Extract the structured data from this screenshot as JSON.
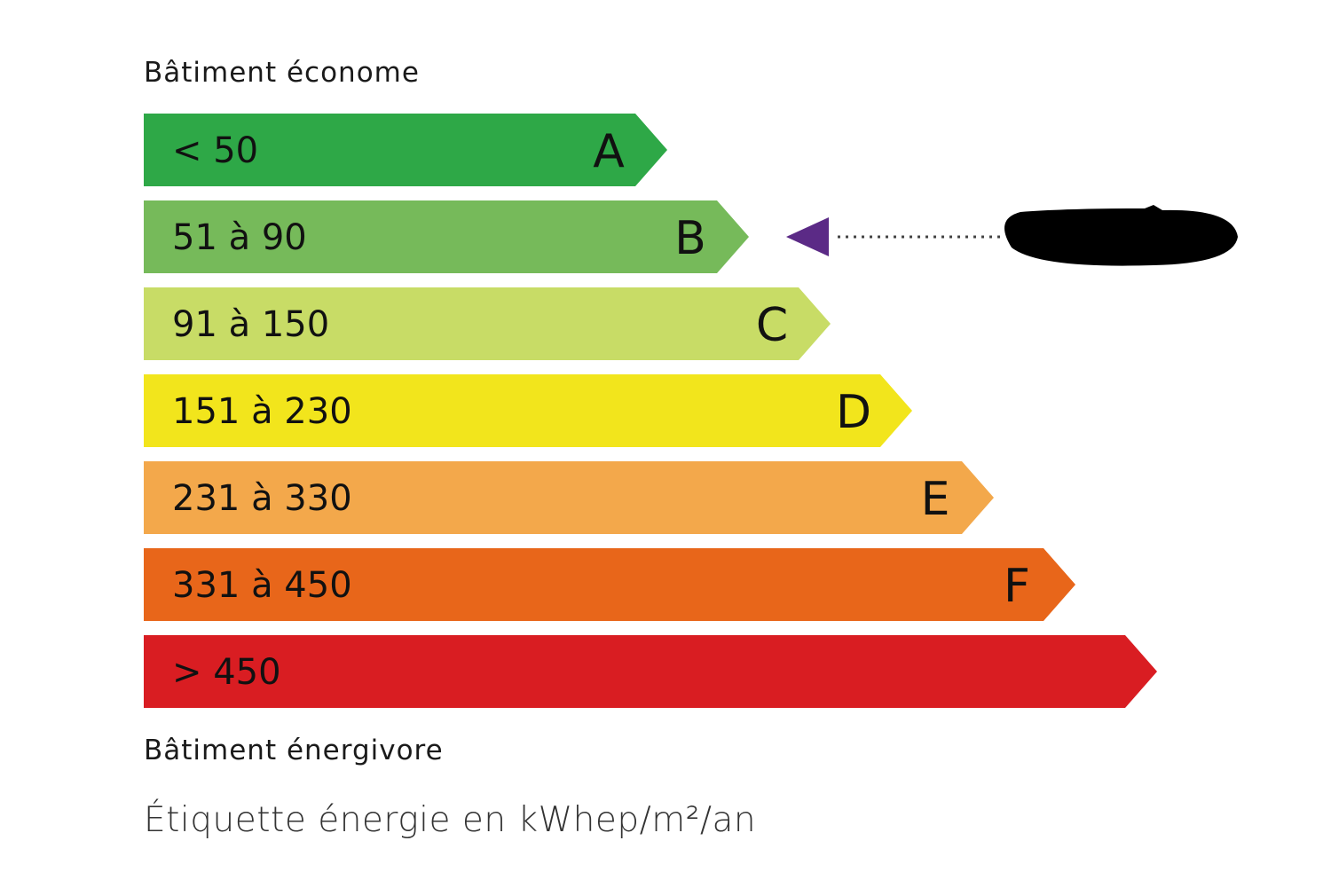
{
  "top_label": "Bâtiment économe",
  "bottom_label": "Bâtiment énergivore",
  "caption": "Étiquette énergie en kWhep/m²/an",
  "classes": [
    {
      "letter": "A",
      "range": "< 50",
      "color": "#2ea847"
    },
    {
      "letter": "B",
      "range": "51 à 90",
      "color": "#76ba5a"
    },
    {
      "letter": "C",
      "range": "91 à 150",
      "color": "#c8dc66"
    },
    {
      "letter": "D",
      "range": "151 à 230",
      "color": "#f2e51c"
    },
    {
      "letter": "E",
      "range": "231 à 330",
      "color": "#f3a84b"
    },
    {
      "letter": "F",
      "range": "331 à 450",
      "color": "#e8661a"
    },
    {
      "letter": "",
      "range": "> 450",
      "color": "#d91d22"
    }
  ],
  "indicator": {
    "class": "B",
    "color": "#5b2a86",
    "value_redacted": true
  }
}
